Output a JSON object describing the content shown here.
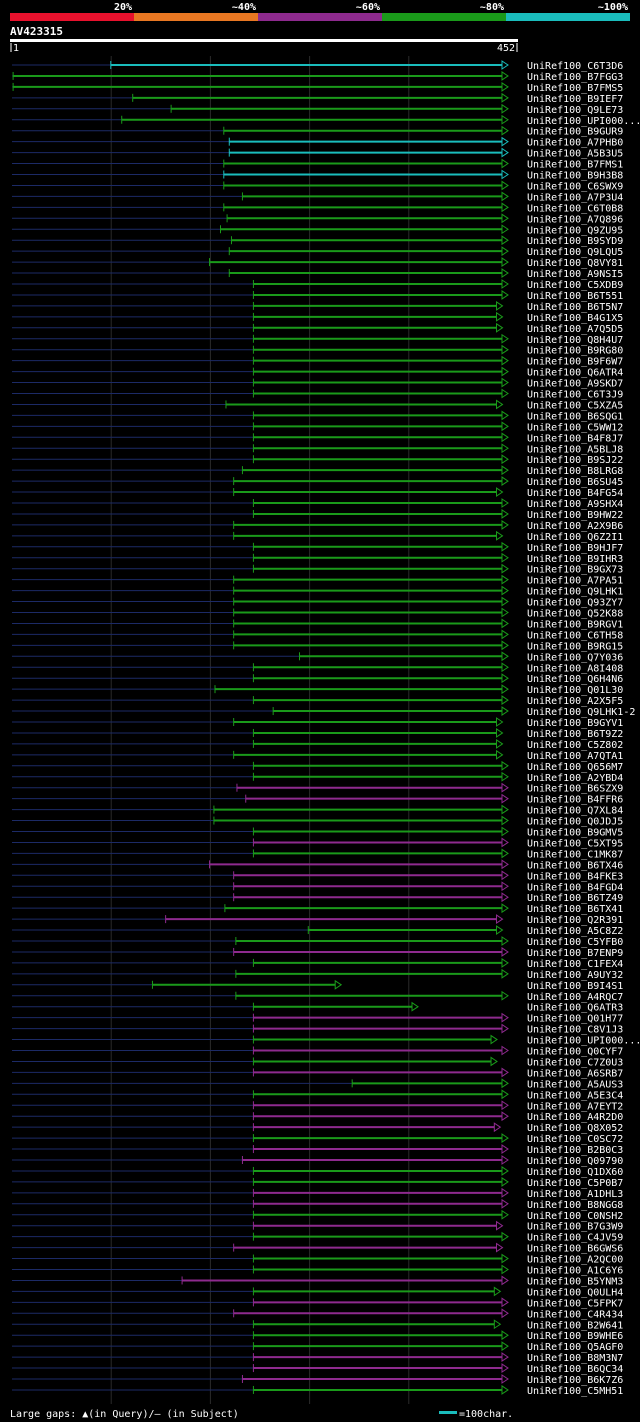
{
  "header": {
    "identity_labels": [
      "20%",
      "~40%",
      "~60%",
      "~80%",
      "~100%"
    ],
    "identity_colors": [
      "#e8112d",
      "#e87722",
      "#8e2a8e",
      "#1a9a1a",
      "#1abcbc"
    ],
    "query_name": "AV423315",
    "range_start": "1",
    "range_end": "452"
  },
  "footer": {
    "gaps_label": "Large gaps: ▲(in Query)/– (in Subject)",
    "scale_label": "=100char."
  },
  "chart_data": {
    "type": "alignment-overview",
    "query_length": 452,
    "hits": [
      {
        "label": "UniRef100_C6T3D6",
        "start": 90,
        "end": 452,
        "identity": "~100%"
      },
      {
        "label": "UniRef100_B7FGG3",
        "start": 1,
        "end": 452,
        "identity": "~80%"
      },
      {
        "label": "UniRef100_B7FMS5",
        "start": 1,
        "end": 452,
        "identity": "~80%"
      },
      {
        "label": "UniRef100_B9IEF7",
        "start": 110,
        "end": 452,
        "identity": "~80%"
      },
      {
        "label": "UniRef100_Q9LE73",
        "start": 145,
        "end": 452,
        "identity": "~80%"
      },
      {
        "label": "UniRef100_UPI000...",
        "start": 100,
        "end": 452,
        "identity": "~80%"
      },
      {
        "label": "UniRef100_B9GUR9",
        "start": 193,
        "end": 452,
        "identity": "~80%"
      },
      {
        "label": "UniRef100_A7PHB0",
        "start": 198,
        "end": 452,
        "identity": "~100%"
      },
      {
        "label": "UniRef100_A5B3U5",
        "start": 198,
        "end": 452,
        "identity": "~100%"
      },
      {
        "label": "UniRef100_B7FMS1",
        "start": 193,
        "end": 452,
        "identity": "~80%"
      },
      {
        "label": "UniRef100_B9H3B8",
        "start": 193,
        "end": 452,
        "identity": "~100%"
      },
      {
        "label": "UniRef100_C6SWX9",
        "start": 193,
        "end": 452,
        "identity": "~80%"
      },
      {
        "label": "UniRef100_A7P3U4",
        "start": 210,
        "end": 452,
        "identity": "~80%"
      },
      {
        "label": "UniRef100_C6T0B8",
        "start": 193,
        "end": 452,
        "identity": "~80%"
      },
      {
        "label": "UniRef100_A7Q896",
        "start": 196,
        "end": 452,
        "identity": "~80%"
      },
      {
        "label": "UniRef100_Q9ZU95",
        "start": 190,
        "end": 452,
        "identity": "~80%"
      },
      {
        "label": "UniRef100_B9SYD9",
        "start": 200,
        "end": 452,
        "identity": "~80%"
      },
      {
        "label": "UniRef100_Q9LQU5",
        "start": 198,
        "end": 452,
        "identity": "~80%"
      },
      {
        "label": "UniRef100_Q8VY81",
        "start": 180,
        "end": 452,
        "identity": "~80%"
      },
      {
        "label": "UniRef100_A9NSI5",
        "start": 198,
        "end": 452,
        "identity": "~80%"
      },
      {
        "label": "UniRef100_C5XDB9",
        "start": 220,
        "end": 452,
        "identity": "~80%"
      },
      {
        "label": "UniRef100_B6T551",
        "start": 220,
        "end": 452,
        "identity": "~80%"
      },
      {
        "label": "UniRef100_B6T5N7",
        "start": 220,
        "end": 447,
        "identity": "~80%"
      },
      {
        "label": "UniRef100_B4G1X5",
        "start": 220,
        "end": 447,
        "identity": "~80%"
      },
      {
        "label": "UniRef100_A7Q5D5",
        "start": 220,
        "end": 447,
        "identity": "~80%"
      },
      {
        "label": "UniRef100_Q8H4U7",
        "start": 220,
        "end": 452,
        "identity": "~80%"
      },
      {
        "label": "UniRef100_B9RG80",
        "start": 220,
        "end": 452,
        "identity": "~80%"
      },
      {
        "label": "UniRef100_B9F6W7",
        "start": 220,
        "end": 452,
        "identity": "~80%"
      },
      {
        "label": "UniRef100_Q6ATR4",
        "start": 220,
        "end": 452,
        "identity": "~80%"
      },
      {
        "label": "UniRef100_A9SKD7",
        "start": 220,
        "end": 452,
        "identity": "~80%"
      },
      {
        "label": "UniRef100_C6T3J9",
        "start": 220,
        "end": 452,
        "identity": "~80%"
      },
      {
        "label": "UniRef100_C5XZA5",
        "start": 195,
        "end": 447,
        "identity": "~80%"
      },
      {
        "label": "UniRef100_B6SQG1",
        "start": 220,
        "end": 452,
        "identity": "~80%"
      },
      {
        "label": "UniRef100_C5WW12",
        "start": 220,
        "end": 452,
        "identity": "~80%"
      },
      {
        "label": "UniRef100_B4F8J7",
        "start": 220,
        "end": 452,
        "identity": "~80%"
      },
      {
        "label": "UniRef100_A5BLJ8",
        "start": 220,
        "end": 452,
        "identity": "~80%"
      },
      {
        "label": "UniRef100_B9SJ22",
        "start": 220,
        "end": 452,
        "identity": "~80%"
      },
      {
        "label": "UniRef100_B8LRG8",
        "start": 210,
        "end": 452,
        "identity": "~80%"
      },
      {
        "label": "UniRef100_B6SU45",
        "start": 202,
        "end": 452,
        "identity": "~80%"
      },
      {
        "label": "UniRef100_B4FG54",
        "start": 202,
        "end": 447,
        "identity": "~80%"
      },
      {
        "label": "UniRef100_A9SHX4",
        "start": 220,
        "end": 452,
        "identity": "~80%"
      },
      {
        "label": "UniRef100_B9HW22",
        "start": 220,
        "end": 452,
        "identity": "~80%"
      },
      {
        "label": "UniRef100_A2X9B6",
        "start": 202,
        "end": 452,
        "identity": "~80%"
      },
      {
        "label": "UniRef100_Q6Z2I1",
        "start": 202,
        "end": 447,
        "identity": "~80%"
      },
      {
        "label": "UniRef100_B9HJF7",
        "start": 220,
        "end": 452,
        "identity": "~80%"
      },
      {
        "label": "UniRef100_B9IHR3",
        "start": 220,
        "end": 452,
        "identity": "~80%"
      },
      {
        "label": "UniRef100_B9GX73",
        "start": 220,
        "end": 452,
        "identity": "~80%"
      },
      {
        "label": "UniRef100_A7PA51",
        "start": 202,
        "end": 452,
        "identity": "~80%"
      },
      {
        "label": "UniRef100_Q9LHK1",
        "start": 202,
        "end": 452,
        "identity": "~80%"
      },
      {
        "label": "UniRef100_Q93ZY7",
        "start": 202,
        "end": 452,
        "identity": "~80%"
      },
      {
        "label": "UniRef100_Q52K88",
        "start": 202,
        "end": 452,
        "identity": "~80%"
      },
      {
        "label": "UniRef100_B9RGV1",
        "start": 202,
        "end": 452,
        "identity": "~80%"
      },
      {
        "label": "UniRef100_C6TH58",
        "start": 202,
        "end": 452,
        "identity": "~80%"
      },
      {
        "label": "UniRef100_B9RG15",
        "start": 202,
        "end": 452,
        "identity": "~80%"
      },
      {
        "label": "UniRef100_Q7Y036",
        "start": 262,
        "end": 452,
        "identity": "~80%"
      },
      {
        "label": "UniRef100_A8I408",
        "start": 220,
        "end": 452,
        "identity": "~80%"
      },
      {
        "label": "UniRef100_Q6H4N6",
        "start": 220,
        "end": 452,
        "identity": "~80%"
      },
      {
        "label": "UniRef100_Q01L30",
        "start": 185,
        "end": 452,
        "identity": "~80%"
      },
      {
        "label": "UniRef100_A2X5F5",
        "start": 220,
        "end": 452,
        "identity": "~80%"
      },
      {
        "label": "UniRef100_Q9LHK1-2",
        "start": 238,
        "end": 452,
        "identity": "~80%"
      },
      {
        "label": "UniRef100_B9GYV1",
        "start": 202,
        "end": 447,
        "identity": "~80%"
      },
      {
        "label": "UniRef100_B6T9Z2",
        "start": 220,
        "end": 447,
        "identity": "~80%"
      },
      {
        "label": "UniRef100_C5Z802",
        "start": 220,
        "end": 447,
        "identity": "~80%"
      },
      {
        "label": "UniRef100_A7QTA1",
        "start": 202,
        "end": 447,
        "identity": "~80%"
      },
      {
        "label": "UniRef100_Q656M7",
        "start": 220,
        "end": 452,
        "identity": "~80%"
      },
      {
        "label": "UniRef100_A2YBD4",
        "start": 220,
        "end": 452,
        "identity": "~80%"
      },
      {
        "label": "UniRef100_B6SZX9",
        "start": 205,
        "end": 452,
        "identity": "~60%"
      },
      {
        "label": "UniRef100_B4FFR6",
        "start": 213,
        "end": 452,
        "identity": "~60%"
      },
      {
        "label": "UniRef100_Q7XL84",
        "start": 184,
        "end": 452,
        "identity": "~80%"
      },
      {
        "label": "UniRef100_Q0JDJ5",
        "start": 184,
        "end": 452,
        "identity": "~80%"
      },
      {
        "label": "UniRef100_B9GMV5",
        "start": 220,
        "end": 452,
        "identity": "~80%"
      },
      {
        "label": "UniRef100_C5XT95",
        "start": 220,
        "end": 452,
        "identity": "~60%"
      },
      {
        "label": "UniRef100_C1MK87",
        "start": 220,
        "end": 452,
        "identity": "~80%"
      },
      {
        "label": "UniRef100_B6TX46",
        "start": 180,
        "end": 452,
        "identity": "~60%"
      },
      {
        "label": "UniRef100_B4FKE3",
        "start": 202,
        "end": 452,
        "identity": "~60%"
      },
      {
        "label": "UniRef100_B4FGD4",
        "start": 202,
        "end": 452,
        "identity": "~60%"
      },
      {
        "label": "UniRef100_B6TZ49",
        "start": 202,
        "end": 452,
        "identity": "~60%"
      },
      {
        "label": "UniRef100_B6TX41",
        "start": 194,
        "end": 452,
        "identity": "~80%"
      },
      {
        "label": "UniRef100_Q2R391",
        "start": 140,
        "end": 447,
        "identity": "~60%"
      },
      {
        "label": "UniRef100_A5C8Z2",
        "start": 270,
        "end": 447,
        "identity": "~80%"
      },
      {
        "label": "UniRef100_C5YFB0",
        "start": 204,
        "end": 452,
        "identity": "~80%"
      },
      {
        "label": "UniRef100_B7ENP9",
        "start": 202,
        "end": 452,
        "identity": "~60%"
      },
      {
        "label": "UniRef100_C1FEX4",
        "start": 220,
        "end": 452,
        "identity": "~80%"
      },
      {
        "label": "UniRef100_A9UY32",
        "start": 204,
        "end": 452,
        "identity": "~80%"
      },
      {
        "label": "UniRef100_B9I4S1",
        "start": 128,
        "end": 300,
        "identity": "~80%"
      },
      {
        "label": "UniRef100_A4RQC7",
        "start": 204,
        "end": 452,
        "identity": "~80%"
      },
      {
        "label": "UniRef100_Q6ATR3",
        "start": 220,
        "end": 370,
        "identity": "~80%"
      },
      {
        "label": "UniRef100_Q01H77",
        "start": 220,
        "end": 452,
        "identity": "~60%"
      },
      {
        "label": "UniRef100_C8V1J3",
        "start": 220,
        "end": 452,
        "identity": "~60%"
      },
      {
        "label": "UniRef100_UPI000...",
        "start": 220,
        "end": 442,
        "identity": "~80%"
      },
      {
        "label": "UniRef100_Q0CYF7",
        "start": 220,
        "end": 452,
        "identity": "~60%"
      },
      {
        "label": "UniRef100_C7Z0U3",
        "start": 220,
        "end": 442,
        "identity": "~80%"
      },
      {
        "label": "UniRef100_A6SRB7",
        "start": 220,
        "end": 452,
        "identity": "~60%"
      },
      {
        "label": "UniRef100_A5AUS3",
        "start": 310,
        "end": 452,
        "identity": "~80%"
      },
      {
        "label": "UniRef100_A5E3C4",
        "start": 220,
        "end": 452,
        "identity": "~80%"
      },
      {
        "label": "UniRef100_A7EYT2",
        "start": 220,
        "end": 452,
        "identity": "~60%"
      },
      {
        "label": "UniRef100_A4R2D0",
        "start": 220,
        "end": 452,
        "identity": "~60%"
      },
      {
        "label": "UniRef100_Q8X052",
        "start": 220,
        "end": 445,
        "identity": "~60%"
      },
      {
        "label": "UniRef100_C0SC72",
        "start": 220,
        "end": 452,
        "identity": "~80%"
      },
      {
        "label": "UniRef100_B2B0C3",
        "start": 220,
        "end": 452,
        "identity": "~60%"
      },
      {
        "label": "UniRef100_Q09790",
        "start": 210,
        "end": 452,
        "identity": "~60%"
      },
      {
        "label": "UniRef100_Q1DX60",
        "start": 220,
        "end": 452,
        "identity": "~80%"
      },
      {
        "label": "UniRef100_C5P0B7",
        "start": 220,
        "end": 452,
        "identity": "~80%"
      },
      {
        "label": "UniRef100_A1DHL3",
        "start": 220,
        "end": 452,
        "identity": "~60%"
      },
      {
        "label": "UniRef100_B8NGG8",
        "start": 220,
        "end": 452,
        "identity": "~60%"
      },
      {
        "label": "UniRef100_C0NSH2",
        "start": 220,
        "end": 452,
        "identity": "~80%"
      },
      {
        "label": "UniRef100_B7G3W9",
        "start": 220,
        "end": 447,
        "identity": "~60%"
      },
      {
        "label": "UniRef100_C4JV59",
        "start": 220,
        "end": 452,
        "identity": "~80%"
      },
      {
        "label": "UniRef100_B6GWS6",
        "start": 202,
        "end": 447,
        "identity": "~60%"
      },
      {
        "label": "UniRef100_A2QC00",
        "start": 220,
        "end": 452,
        "identity": "~80%"
      },
      {
        "label": "UniRef100_A1C6Y6",
        "start": 220,
        "end": 452,
        "identity": "~80%"
      },
      {
        "label": "UniRef100_B5YNM3",
        "start": 155,
        "end": 452,
        "identity": "~60%"
      },
      {
        "label": "UniRef100_Q0ULH4",
        "start": 220,
        "end": 445,
        "identity": "~80%"
      },
      {
        "label": "UniRef100_C5FPK7",
        "start": 220,
        "end": 452,
        "identity": "~60%"
      },
      {
        "label": "UniRef100_C4R434",
        "start": 202,
        "end": 452,
        "identity": "~60%"
      },
      {
        "label": "UniRef100_B2W641",
        "start": 220,
        "end": 445,
        "identity": "~80%"
      },
      {
        "label": "UniRef100_B9WHE6",
        "start": 220,
        "end": 452,
        "identity": "~80%"
      },
      {
        "label": "UniRef100_Q5AGF0",
        "start": 220,
        "end": 452,
        "identity": "~80%"
      },
      {
        "label": "UniRef100_B8M3N7",
        "start": 220,
        "end": 452,
        "identity": "~60%"
      },
      {
        "label": "UniRef100_B6QC34",
        "start": 220,
        "end": 452,
        "identity": "~60%"
      },
      {
        "label": "UniRef100_B6K7Z6",
        "start": 210,
        "end": 452,
        "identity": "~60%"
      },
      {
        "label": "UniRef100_C5MH51",
        "start": 220,
        "end": 452,
        "identity": "~80%"
      }
    ]
  }
}
